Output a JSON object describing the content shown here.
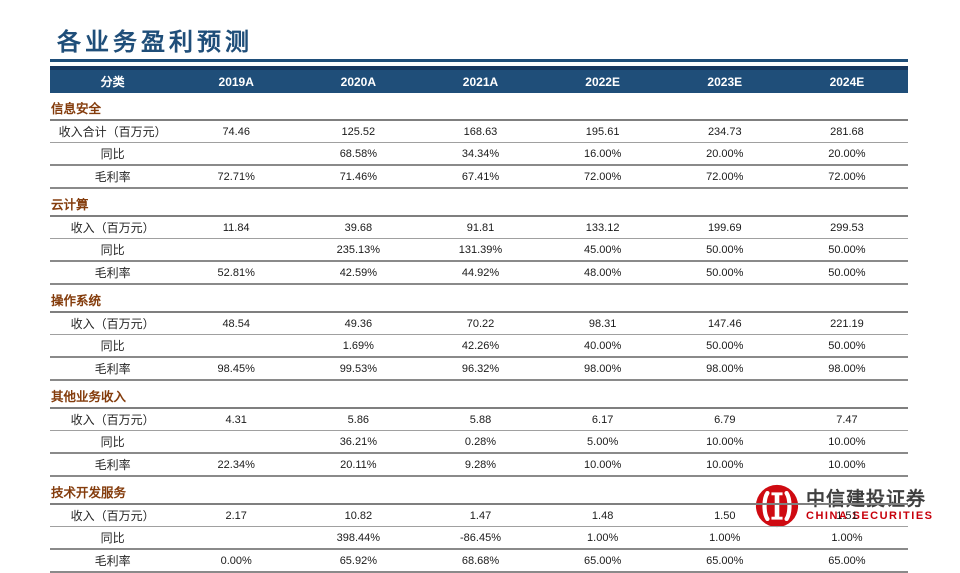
{
  "slide": {
    "title": "各业务盈利预测"
  },
  "table": {
    "headers": [
      "分类",
      "2019A",
      "2020A",
      "2021A",
      "2022E",
      "2023E",
      "2024E"
    ],
    "sections": [
      {
        "name": "信息安全",
        "rows": [
          {
            "label": "收入合计（百万元）",
            "values": [
              "74.46",
              "125.52",
              "168.63",
              "195.61",
              "234.73",
              "281.68"
            ]
          },
          {
            "label": "同比",
            "values": [
              "",
              "68.58%",
              "34.34%",
              "16.00%",
              "20.00%",
              "20.00%"
            ]
          },
          {
            "label": "毛利率",
            "values": [
              "72.71%",
              "71.46%",
              "67.41%",
              "72.00%",
              "72.00%",
              "72.00%"
            ]
          }
        ]
      },
      {
        "name": "云计算",
        "rows": [
          {
            "label": "收入（百万元）",
            "values": [
              "11.84",
              "39.68",
              "91.81",
              "133.12",
              "199.69",
              "299.53"
            ]
          },
          {
            "label": "同比",
            "values": [
              "",
              "235.13%",
              "131.39%",
              "45.00%",
              "50.00%",
              "50.00%"
            ]
          },
          {
            "label": "毛利率",
            "values": [
              "52.81%",
              "42.59%",
              "44.92%",
              "48.00%",
              "50.00%",
              "50.00%"
            ]
          }
        ]
      },
      {
        "name": "操作系统",
        "rows": [
          {
            "label": "收入（百万元）",
            "values": [
              "48.54",
              "49.36",
              "70.22",
              "98.31",
              "147.46",
              "221.19"
            ]
          },
          {
            "label": "同比",
            "values": [
              "",
              "1.69%",
              "42.26%",
              "40.00%",
              "50.00%",
              "50.00%"
            ]
          },
          {
            "label": "毛利率",
            "values": [
              "98.45%",
              "99.53%",
              "96.32%",
              "98.00%",
              "98.00%",
              "98.00%"
            ]
          }
        ]
      },
      {
        "name": "其他业务收入",
        "rows": [
          {
            "label": "收入（百万元）",
            "values": [
              "4.31",
              "5.86",
              "5.88",
              "6.17",
              "6.79",
              "7.47"
            ]
          },
          {
            "label": "同比",
            "values": [
              "",
              "36.21%",
              "0.28%",
              "5.00%",
              "10.00%",
              "10.00%"
            ]
          },
          {
            "label": "毛利率",
            "values": [
              "22.34%",
              "20.11%",
              "9.28%",
              "10.00%",
              "10.00%",
              "10.00%"
            ]
          }
        ]
      },
      {
        "name": "技术开发服务",
        "rows": [
          {
            "label": "收入（百万元）",
            "values": [
              "2.17",
              "10.82",
              "1.47",
              "1.48",
              "1.50",
              "1.51"
            ]
          },
          {
            "label": "同比",
            "values": [
              "",
              "398.44%",
              "-86.45%",
              "1.00%",
              "1.00%",
              "1.00%"
            ]
          },
          {
            "label": "毛利率",
            "values": [
              "0.00%",
              "65.92%",
              "68.68%",
              "65.00%",
              "65.00%",
              "65.00%"
            ]
          }
        ]
      }
    ]
  },
  "logo": {
    "name_cn": "中信建投证券",
    "name_en": "CHINA SECURITIES"
  },
  "colors": {
    "accent_blue": "#1f4e79",
    "header_edge_blue": "#17375e",
    "section_brown": "#843c0c",
    "logo_red": "#c7000b",
    "emblem_red": "#cf0a11"
  }
}
